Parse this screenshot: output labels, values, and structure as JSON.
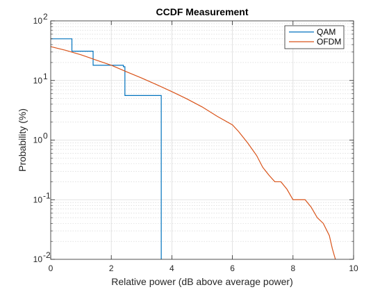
{
  "chart_data": {
    "type": "line",
    "title": "CCDF Measurement",
    "xlabel": "Relative power (dB above average power)",
    "ylabel": "Probability (%)",
    "xlim": [
      0,
      10
    ],
    "ylim": [
      0.01,
      100
    ],
    "yscale": "log",
    "grid": true,
    "minor_grid": true,
    "legend_position": "top-right",
    "x_ticks": [
      "0",
      "2",
      "4",
      "6",
      "8",
      "10"
    ],
    "y_ticks": [
      {
        "base": "10",
        "exp": "-2",
        "value": 0.01
      },
      {
        "base": "10",
        "exp": "-1",
        "value": 0.1
      },
      {
        "base": "10",
        "exp": "0",
        "value": 1
      },
      {
        "base": "10",
        "exp": "1",
        "value": 10
      },
      {
        "base": "10",
        "exp": "2",
        "value": 100
      }
    ],
    "series": [
      {
        "name": "QAM",
        "color": "#0072BD",
        "step": true,
        "x": [
          0,
          0.7,
          0.7,
          1.4,
          1.4,
          2.4,
          2.4,
          2.45,
          2.45,
          3.65,
          3.65
        ],
        "y": [
          50,
          50,
          31,
          31,
          18,
          18,
          17,
          17,
          5.6,
          5.6,
          0.01
        ]
      },
      {
        "name": "OFDM",
        "color": "#D95319",
        "step": false,
        "x": [
          0,
          0.5,
          1.0,
          1.5,
          2.0,
          2.5,
          3.0,
          3.5,
          4.0,
          4.5,
          5.0,
          5.5,
          6.0,
          6.2,
          6.5,
          6.8,
          7.0,
          7.2,
          7.4,
          7.6,
          7.8,
          8.0,
          8.2,
          8.4,
          8.6,
          8.8,
          9.0,
          9.2,
          9.3,
          9.4
        ],
        "y": [
          37,
          32,
          27,
          22,
          18,
          14,
          11,
          8.5,
          6.5,
          4.9,
          3.6,
          2.5,
          1.8,
          1.4,
          0.9,
          0.55,
          0.35,
          0.26,
          0.2,
          0.2,
          0.15,
          0.1,
          0.1,
          0.1,
          0.075,
          0.05,
          0.04,
          0.025,
          0.015,
          0.01
        ]
      }
    ]
  }
}
